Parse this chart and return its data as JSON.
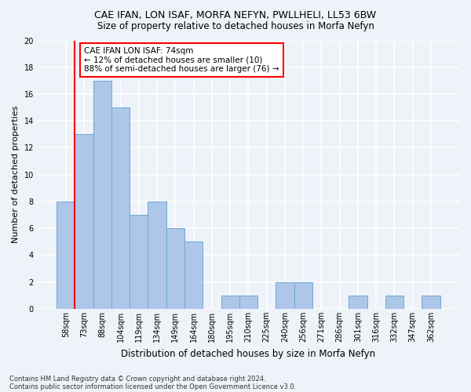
{
  "title": "CAE IFAN, LON ISAF, MORFA NEFYN, PWLLHELI, LL53 6BW",
  "subtitle": "Size of property relative to detached houses in Morfa Nefyn",
  "xlabel": "Distribution of detached houses by size in Morfa Nefyn",
  "ylabel": "Number of detached properties",
  "categories": [
    "58sqm",
    "73sqm",
    "88sqm",
    "104sqm",
    "119sqm",
    "134sqm",
    "149sqm",
    "164sqm",
    "180sqm",
    "195sqm",
    "210sqm",
    "225sqm",
    "240sqm",
    "256sqm",
    "271sqm",
    "286sqm",
    "301sqm",
    "316sqm",
    "332sqm",
    "347sqm",
    "362sqm"
  ],
  "values": [
    8,
    13,
    17,
    15,
    7,
    8,
    6,
    5,
    0,
    1,
    1,
    0,
    2,
    2,
    0,
    0,
    1,
    0,
    1,
    0,
    1
  ],
  "bar_color": "#aec6e8",
  "bar_edge_color": "#6aaad4",
  "annotation_text": "CAE IFAN LON ISAF: 74sqm\n← 12% of detached houses are smaller (10)\n88% of semi-detached houses are larger (76) →",
  "annotation_box_color": "white",
  "annotation_box_edge": "red",
  "ylim": [
    0,
    20
  ],
  "yticks": [
    0,
    2,
    4,
    6,
    8,
    10,
    12,
    14,
    16,
    18,
    20
  ],
  "footer1": "Contains HM Land Registry data © Crown copyright and database right 2024.",
  "footer2": "Contains public sector information licensed under the Open Government Licence v3.0.",
  "bg_color": "#eef2f9",
  "grid_color": "white",
  "title_fontsize": 9,
  "subtitle_fontsize": 8.5,
  "ylabel_fontsize": 8,
  "xlabel_fontsize": 8.5,
  "tick_fontsize": 7,
  "annotation_fontsize": 7.5,
  "footer_fontsize": 6
}
